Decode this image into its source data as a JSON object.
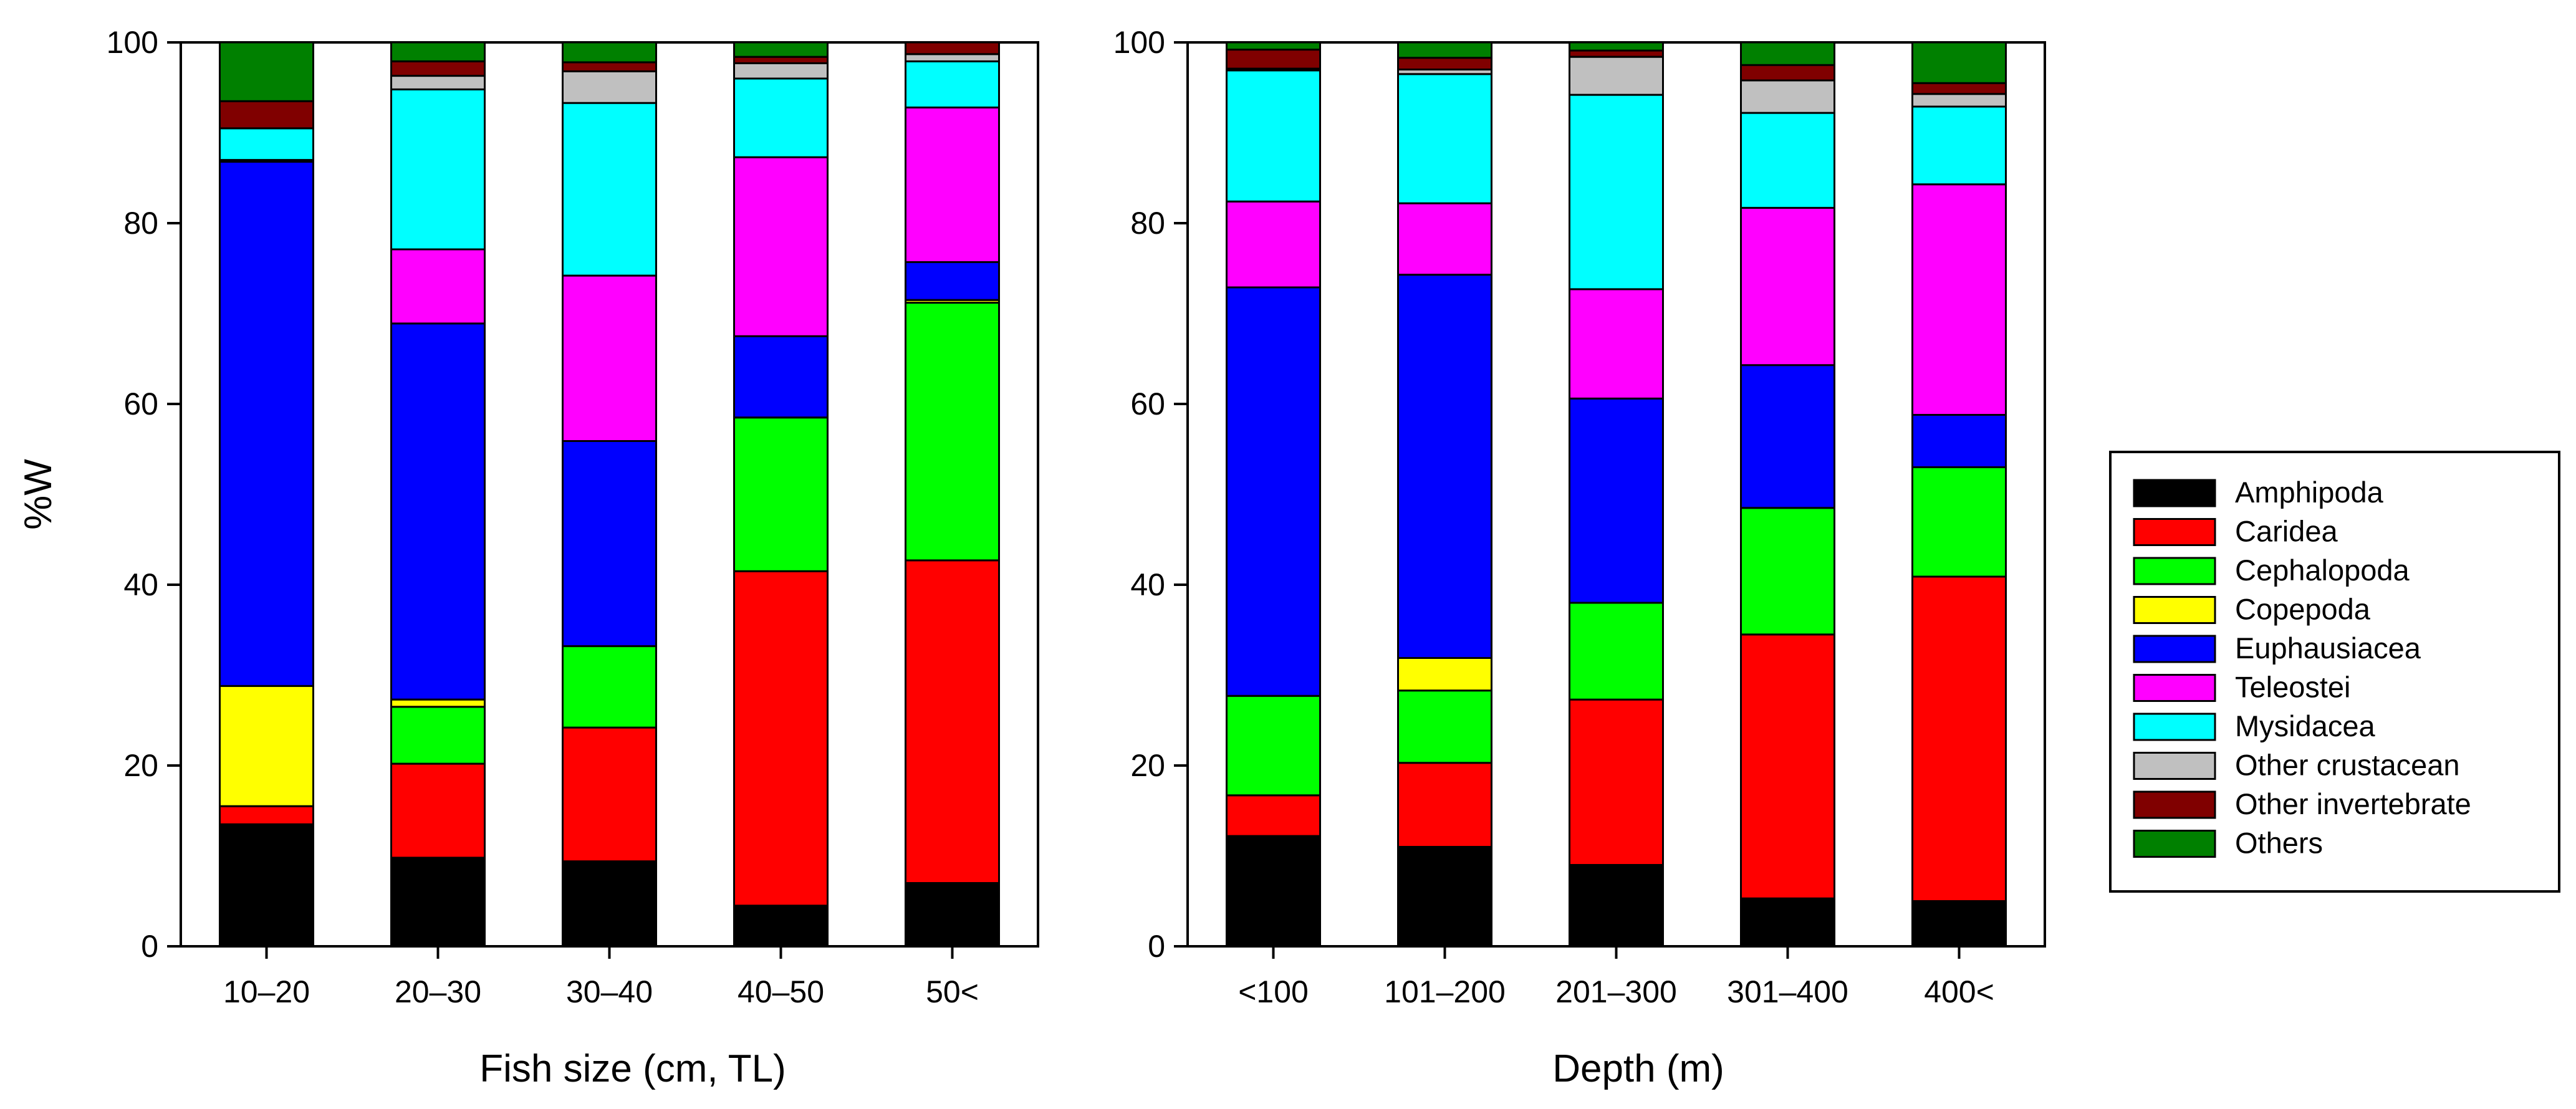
{
  "figure": {
    "legend": {
      "placement": "right",
      "entries": [
        "Amphipoda",
        "Caridea",
        "Cephalopoda",
        "Copepoda",
        "Euphausiacea",
        "Teleostei",
        "Mysidacea",
        "Other crustacean",
        "Other invertebrate",
        "Others"
      ]
    },
    "colors": {
      "Amphipoda": "#000000",
      "Caridea": "#ff0000",
      "Cephalopoda": "#00ff00",
      "Copepoda": "#ffff00",
      "Euphausiacea": "#0000ff",
      "Teleostei": "#ff00ff",
      "Mysidacea": "#00ffff",
      "Other crustacean": "#c0c0c0",
      "Other invertebrate": "#800000",
      "Others": "#008000"
    }
  },
  "chart_data": [
    {
      "type": "bar",
      "stacked": true,
      "title": "",
      "xlabel": "Fish size (cm, TL)",
      "ylabel": "%W",
      "ylim": [
        0,
        100
      ],
      "yticks": [
        "0",
        "20",
        "40",
        "60",
        "80",
        "100"
      ],
      "grid": false,
      "categories": [
        "10–20",
        "20–30",
        "30–40",
        "40–50",
        "50<"
      ],
      "series": [
        {
          "name": "Amphipoda",
          "values": [
            13.5,
            9.8,
            9.4,
            4.5,
            7.0
          ]
        },
        {
          "name": "Caridea",
          "values": [
            2.0,
            10.4,
            14.8,
            37.0,
            35.7
          ]
        },
        {
          "name": "Cephalopoda",
          "values": [
            0.0,
            6.3,
            9.0,
            17.0,
            28.5
          ]
        },
        {
          "name": "Copepoda",
          "values": [
            13.3,
            0.8,
            0.0,
            0.0,
            0.3
          ]
        },
        {
          "name": "Euphausiacea",
          "values": [
            58.0,
            41.6,
            22.7,
            9.0,
            4.2
          ]
        },
        {
          "name": "Teleostei",
          "values": [
            0.2,
            8.2,
            18.3,
            19.8,
            17.1
          ]
        },
        {
          "name": "Mysidacea",
          "values": [
            3.5,
            17.7,
            19.1,
            8.7,
            5.1
          ]
        },
        {
          "name": "Other crustacean",
          "values": [
            0.0,
            1.5,
            3.5,
            1.7,
            0.8
          ]
        },
        {
          "name": "Other invertebrate",
          "values": [
            3.0,
            1.6,
            1.0,
            0.7,
            1.3
          ]
        },
        {
          "name": "Others",
          "values": [
            6.5,
            2.1,
            2.2,
            1.6,
            0.0
          ]
        }
      ]
    },
    {
      "type": "bar",
      "stacked": true,
      "title": "",
      "xlabel": "Depth (m)",
      "ylabel": "",
      "ylim": [
        0,
        100
      ],
      "yticks": [
        "0",
        "20",
        "40",
        "60",
        "80",
        "100"
      ],
      "grid": false,
      "categories": [
        "<100",
        "101–200",
        "201–300",
        "301–400",
        "400<"
      ],
      "series": [
        {
          "name": "Amphipoda",
          "values": [
            12.2,
            11.0,
            9.0,
            5.3,
            5.0
          ]
        },
        {
          "name": "Caridea",
          "values": [
            4.5,
            9.3,
            18.3,
            29.2,
            35.9
          ]
        },
        {
          "name": "Cephalopoda",
          "values": [
            11.0,
            8.0,
            10.7,
            14.0,
            12.1
          ]
        },
        {
          "name": "Copepoda",
          "values": [
            0.0,
            3.6,
            0.0,
            0.0,
            0.0
          ]
        },
        {
          "name": "Euphausiacea",
          "values": [
            45.2,
            42.4,
            22.6,
            15.8,
            5.8
          ]
        },
        {
          "name": "Teleostei",
          "values": [
            9.5,
            7.9,
            12.1,
            17.4,
            25.5
          ]
        },
        {
          "name": "Mysidacea",
          "values": [
            14.5,
            14.3,
            21.5,
            10.5,
            8.6
          ]
        },
        {
          "name": "Other crustacean",
          "values": [
            0.2,
            0.5,
            4.2,
            3.6,
            1.4
          ]
        },
        {
          "name": "Other invertebrate",
          "values": [
            2.1,
            1.3,
            0.7,
            1.7,
            1.2
          ]
        },
        {
          "name": "Others",
          "values": [
            0.8,
            1.7,
            0.9,
            2.5,
            4.5
          ]
        }
      ]
    }
  ]
}
